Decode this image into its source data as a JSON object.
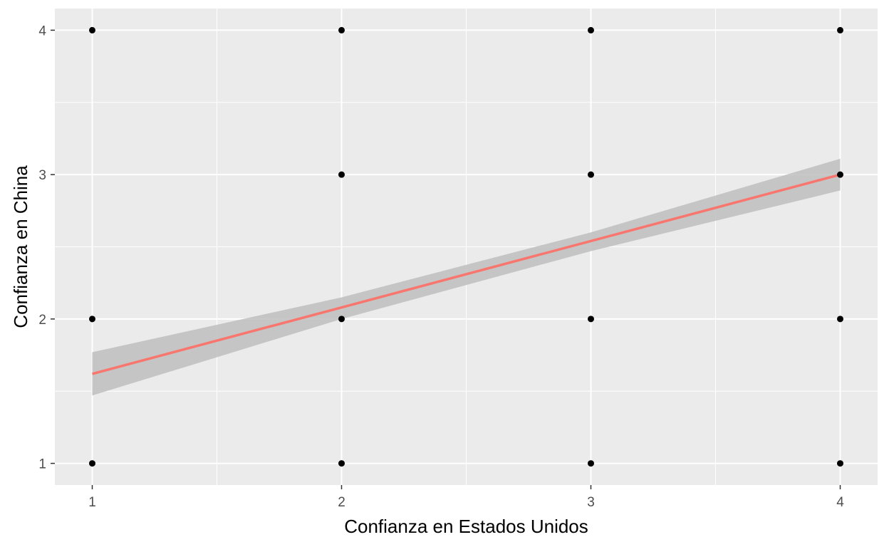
{
  "chart_data": {
    "type": "scatter",
    "title": "",
    "xlabel": "Confianza en Estados Unidos",
    "ylabel": "Confianza en China",
    "xlim": [
      0.85,
      4.15
    ],
    "ylim": [
      0.85,
      4.15
    ],
    "x_ticks": [
      1,
      2,
      3,
      4
    ],
    "y_ticks": [
      1,
      2,
      3,
      4
    ],
    "grid": true,
    "legend": "none",
    "points": [
      {
        "x": 1,
        "y": 1
      },
      {
        "x": 1,
        "y": 2
      },
      {
        "x": 1,
        "y": 4
      },
      {
        "x": 2,
        "y": 1
      },
      {
        "x": 2,
        "y": 2
      },
      {
        "x": 2,
        "y": 3
      },
      {
        "x": 2,
        "y": 4
      },
      {
        "x": 3,
        "y": 1
      },
      {
        "x": 3,
        "y": 2
      },
      {
        "x": 3,
        "y": 3
      },
      {
        "x": 3,
        "y": 4
      },
      {
        "x": 4,
        "y": 1
      },
      {
        "x": 4,
        "y": 2
      },
      {
        "x": 4,
        "y": 3
      },
      {
        "x": 4,
        "y": 4
      }
    ],
    "trend_line": {
      "method": "linear",
      "x_start": 1,
      "y_start": 1.62,
      "x_end": 4,
      "y_end": 3.0,
      "color": "#F8766D"
    },
    "confidence_band": {
      "x": [
        1,
        2,
        3,
        4
      ],
      "lower": [
        1.47,
        2.0,
        2.47,
        2.89
      ],
      "upper": [
        1.77,
        2.15,
        2.6,
        3.11
      ],
      "color": "#BEBEBE"
    },
    "colors": {
      "panel_background": "#EBEBEB",
      "grid": "#FFFFFF",
      "points": "#000000"
    }
  }
}
